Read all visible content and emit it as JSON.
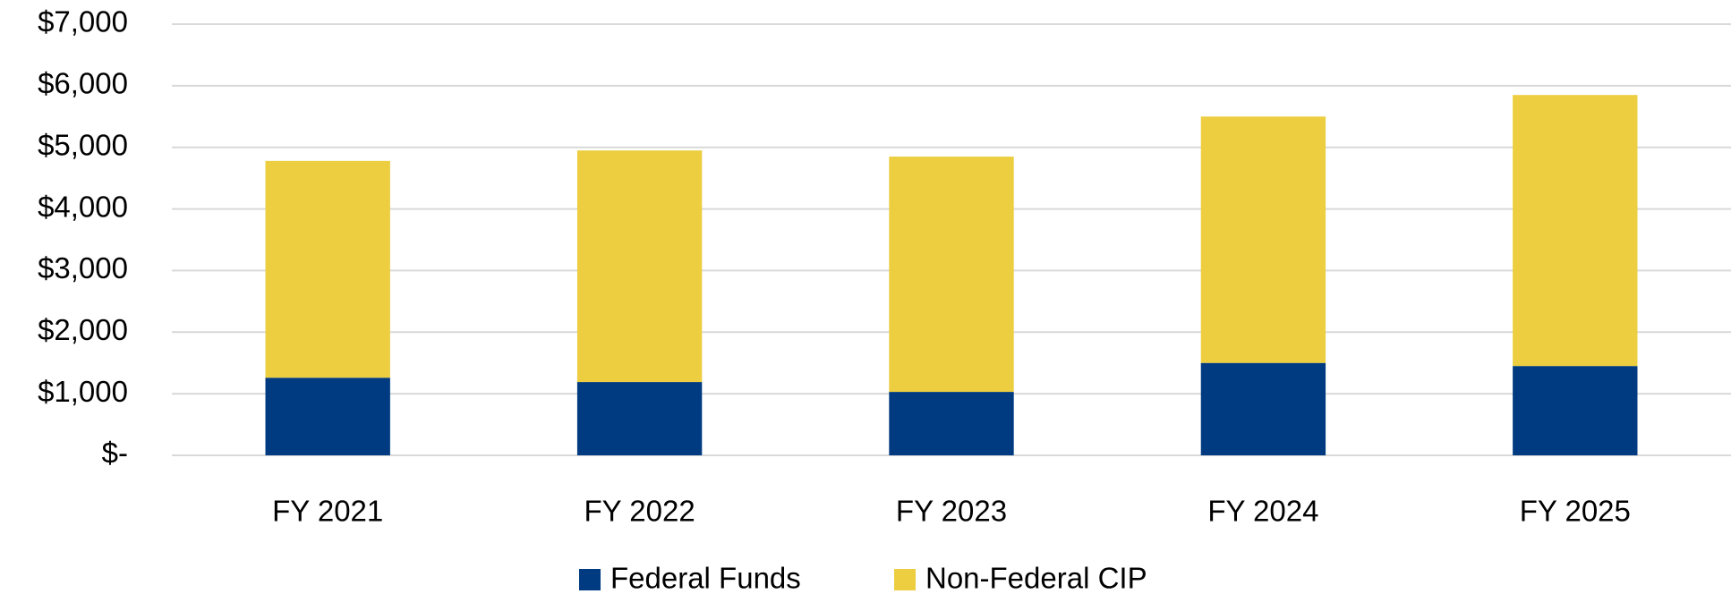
{
  "chart_data": {
    "type": "stacked_bar",
    "categories": [
      "FY 2021",
      "FY 2022",
      "FY 2023",
      "FY 2024",
      "FY 2025"
    ],
    "series": [
      {
        "name": "Federal Funds",
        "color": "#003A80",
        "values": [
          1260,
          1190,
          1030,
          1500,
          1450
        ]
      },
      {
        "name": "Non-Federal CIP",
        "color": "#ECCE40",
        "values": [
          3520,
          3760,
          3820,
          4000,
          4400
        ]
      }
    ],
    "ylim": [
      0,
      7000
    ],
    "yticks": [
      {
        "value": 0,
        "label": "$-"
      },
      {
        "value": 1000,
        "label": "$1,000"
      },
      {
        "value": 2000,
        "label": "$2,000"
      },
      {
        "value": 3000,
        "label": "$3,000"
      },
      {
        "value": 4000,
        "label": "$4,000"
      },
      {
        "value": 5000,
        "label": "$5,000"
      },
      {
        "value": 6000,
        "label": "$6,000"
      },
      {
        "value": 7000,
        "label": "$7,000"
      }
    ],
    "grid": true,
    "legend": "bottom"
  }
}
